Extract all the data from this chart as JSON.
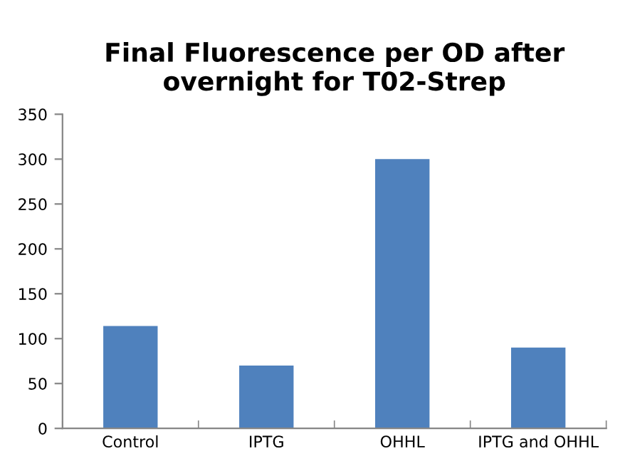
{
  "chart_data": {
    "type": "bar",
    "title": "Final Fluorescence per OD after\novernight for T02-Strep",
    "categories": [
      "Control",
      "IPTG",
      "OHHL",
      "IPTG and OHHL"
    ],
    "values": [
      114,
      70,
      300,
      90
    ],
    "color": "#4f81bd",
    "ylim": [
      0,
      350
    ],
    "yticks": [
      0,
      50,
      100,
      150,
      200,
      250,
      300,
      350
    ],
    "grid": false
  }
}
